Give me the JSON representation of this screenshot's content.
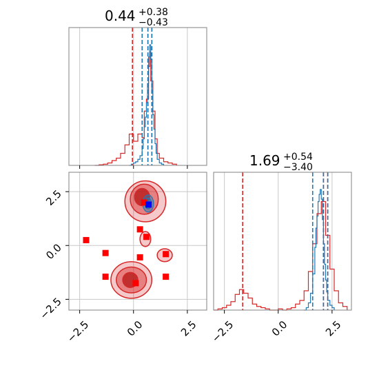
{
  "chart_data": {
    "type": "corner",
    "grid": true,
    "axes": [
      {
        "id": "top-left-hist",
        "type": "histogram",
        "title": {
          "value": "0.44",
          "plus": "+0.38",
          "minus": "−0.43"
        },
        "xlim": [
          -3.0,
          3.4
        ],
        "quantile_lines_blue": [
          0.4,
          0.67,
          0.85
        ],
        "quantile_lines_red": [
          -0.05,
          0.67,
          0.85
        ],
        "blue_hist": {
          "x": [
            -0.2,
            -0.1,
            0.0,
            0.1,
            0.2,
            0.3,
            0.4,
            0.45,
            0.5,
            0.55,
            0.6,
            0.65,
            0.7,
            0.75,
            0.8,
            0.85,
            0.9,
            0.95,
            1.0,
            1.05,
            1.1,
            1.2,
            1.3,
            1.4
          ],
          "y": [
            0,
            0.01,
            0.02,
            0.03,
            0.05,
            0.08,
            0.14,
            0.22,
            0.32,
            0.4,
            0.52,
            0.68,
            0.9,
            1.0,
            0.88,
            0.62,
            0.42,
            0.3,
            0.18,
            0.1,
            0.05,
            0.02,
            0.01,
            0
          ]
        },
        "red_hist": {
          "x": [
            -1.8,
            -1.6,
            -1.4,
            -1.2,
            -1.0,
            -0.8,
            -0.6,
            -0.4,
            -0.2,
            0.0,
            0.2,
            0.4,
            0.5,
            0.6,
            0.7,
            0.75,
            0.8,
            0.9,
            1.0,
            1.1,
            1.2,
            1.4,
            1.6,
            1.8,
            2.0
          ],
          "y": [
            0,
            0.005,
            0.01,
            0.02,
            0.04,
            0.06,
            0.1,
            0.17,
            0.26,
            0.2,
            0.26,
            0.23,
            0.45,
            0.55,
            0.82,
            0.94,
            0.7,
            0.45,
            0.22,
            0.1,
            0.06,
            0.03,
            0.02,
            0.01,
            0
          ]
        }
      },
      {
        "id": "bottom-left-2d",
        "type": "2d-contour",
        "xlim": [
          -3.0,
          3.4
        ],
        "ylim": [
          -3.0,
          3.4
        ],
        "red_squares": [
          {
            "x": -2.2,
            "y": 0.25
          },
          {
            "x": -1.3,
            "y": -0.35
          },
          {
            "x": -1.3,
            "y": -1.45
          },
          {
            "x": 0.3,
            "y": 0.75
          },
          {
            "x": 0.6,
            "y": 0.4
          },
          {
            "x": 0.3,
            "y": -0.55
          },
          {
            "x": 1.5,
            "y": -0.4
          },
          {
            "x": 1.5,
            "y": -1.45
          },
          {
            "x": 0.1,
            "y": -1.75
          },
          {
            "x": 0.5,
            "y": 2.0
          }
        ],
        "blue_square": {
          "x": 0.7,
          "y": 1.9
        },
        "red_contours": [
          {
            "cx": 0.55,
            "cy": 2.05,
            "rx": 0.95,
            "ry": 0.95,
            "level": "outer"
          },
          {
            "cx": 0.5,
            "cy": 2.15,
            "rx": 0.65,
            "ry": 0.7,
            "level": "mid"
          },
          {
            "cx": 0.4,
            "cy": 2.25,
            "rx": 0.35,
            "ry": 0.4,
            "level": "inner"
          },
          {
            "cx": 0.55,
            "cy": 0.3,
            "rx": 0.25,
            "ry": 0.35,
            "level": "outer"
          },
          {
            "cx": 1.45,
            "cy": -0.45,
            "rx": 0.35,
            "ry": 0.3,
            "level": "outer"
          },
          {
            "cx": -0.1,
            "cy": -1.6,
            "rx": 0.95,
            "ry": 0.85,
            "level": "outer"
          },
          {
            "cx": -0.1,
            "cy": -1.6,
            "rx": 0.7,
            "ry": 0.6,
            "level": "mid"
          },
          {
            "cx": -0.15,
            "cy": -1.6,
            "rx": 0.35,
            "ry": 0.35,
            "level": "inner"
          }
        ],
        "blue_contours": [
          {
            "cx": 0.68,
            "cy": 1.95,
            "rx": 0.25,
            "ry": 0.4
          },
          {
            "cx": 0.68,
            "cy": 1.95,
            "rx": 0.15,
            "ry": 0.25
          }
        ]
      },
      {
        "id": "bottom-right-hist",
        "type": "histogram",
        "title": {
          "value": "1.69",
          "plus": "+0.54",
          "minus": "−3.40"
        },
        "xlim": [
          -3.0,
          3.4
        ],
        "quantile_lines_blue": [
          1.6,
          2.1,
          2.3
        ],
        "quantile_lines_red": [
          -1.65,
          2.1,
          2.3
        ],
        "blue_hist": {
          "x": [
            1.2,
            1.3,
            1.4,
            1.5,
            1.6,
            1.7,
            1.75,
            1.8,
            1.85,
            1.9,
            1.95,
            2.0,
            2.05,
            2.1,
            2.15,
            2.2,
            2.25,
            2.3,
            2.4,
            2.5,
            2.6
          ],
          "y": [
            0,
            0.02,
            0.06,
            0.14,
            0.3,
            0.52,
            0.68,
            0.78,
            0.9,
            0.96,
            1.0,
            0.92,
            0.75,
            0.55,
            0.38,
            0.25,
            0.15,
            0.08,
            0.04,
            0.02,
            0
          ]
        },
        "red_hist": {
          "x": [
            -3.0,
            -2.8,
            -2.6,
            -2.4,
            -2.2,
            -2.0,
            -1.8,
            -1.6,
            -1.4,
            -1.2,
            -1.0,
            -0.8,
            -0.6,
            -0.4,
            -0.2,
            0,
            0.2,
            0.4,
            0.6,
            0.8,
            1.0,
            1.2,
            1.4,
            1.6,
            1.8,
            2.0,
            2.2,
            2.4,
            2.6,
            2.8,
            3.0,
            3.2
          ],
          "y": [
            0,
            0.01,
            0.02,
            0.04,
            0.07,
            0.13,
            0.17,
            0.14,
            0.1,
            0.05,
            0.03,
            0.02,
            0.01,
            0.0,
            0.0,
            0.01,
            0.0,
            0.01,
            0.02,
            0.05,
            0.08,
            0.16,
            0.32,
            0.55,
            0.8,
            0.9,
            0.62,
            0.34,
            0.16,
            0.06,
            0.03,
            0
          ]
        }
      }
    ],
    "xticks_left": [
      "−2.5",
      "0.0",
      "2.5"
    ],
    "yticks_left": [
      "2.5",
      "0.0",
      "−2.5"
    ],
    "xticks_right": [
      "−2.5",
      "0.0",
      "2.5"
    ],
    "tick_values": [
      -2.5,
      0.0,
      2.5
    ],
    "colors": {
      "red": "#d62728",
      "blue": "#1f77b4",
      "grid": "#c8c8c8",
      "axis": "#808080",
      "marker_red": "#ff0000",
      "marker_blue": "#0000ff"
    }
  }
}
